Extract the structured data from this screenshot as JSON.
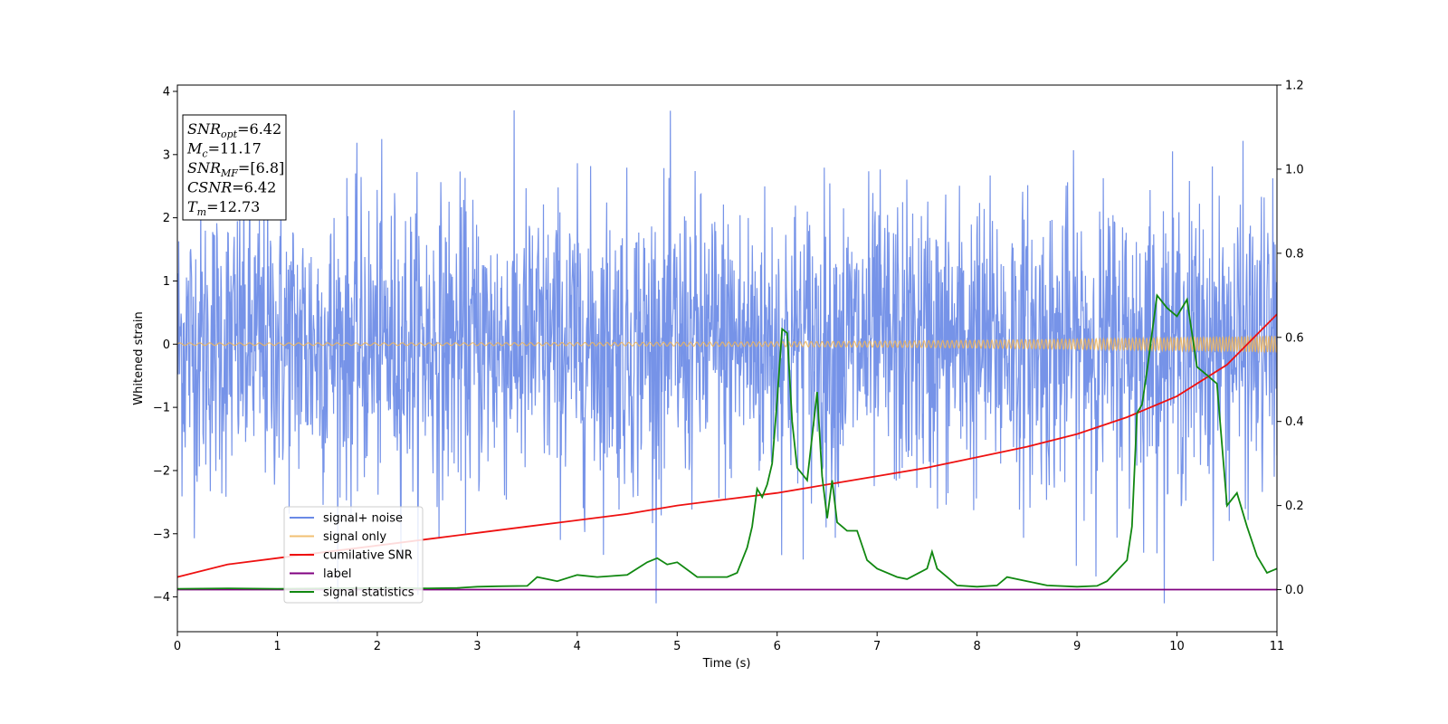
{
  "chart_data": {
    "type": "line",
    "title": "",
    "xlabel": "Time (s)",
    "ylabel": "Whitened strain",
    "xlim": [
      0,
      11
    ],
    "ylim_left": [
      -4.55,
      4.1
    ],
    "ylim_right": [
      -0.1,
      1.2
    ],
    "x_ticks": [
      "0",
      "1",
      "2",
      "3",
      "4",
      "5",
      "6",
      "7",
      "8",
      "9",
      "10",
      "11"
    ],
    "y_ticks_left": [
      "−4",
      "−3",
      "−2",
      "−1",
      "0",
      "1",
      "2",
      "3",
      "4"
    ],
    "y_ticks_right": [
      "0.0",
      "0.2",
      "0.4",
      "0.6",
      "0.8",
      "1.0",
      "1.2"
    ],
    "grid": false,
    "legend_position": "lower-left",
    "series": [
      {
        "name": "signal+ noise",
        "axis": "left",
        "color": "#6a8ae6",
        "kind": "noise",
        "typical_amplitude": 1.5,
        "max": 3.7,
        "min": -4.1
      },
      {
        "name": "signal only",
        "axis": "left",
        "color": "#f0b55a",
        "kind": "chirp",
        "amplitude_start": 0.02,
        "amplitude_end": 0.13
      },
      {
        "name": "cumilative SNR",
        "axis": "right",
        "color": "#ee1111",
        "x": [
          0,
          0.5,
          1,
          1.5,
          2,
          2.5,
          3,
          3.5,
          4,
          4.5,
          5,
          5.5,
          6,
          6.5,
          7,
          7.5,
          8,
          8.5,
          9,
          9.5,
          10,
          10.5,
          11
        ],
        "y": [
          0.03,
          0.06,
          0.075,
          0.09,
          0.105,
          0.12,
          0.135,
          0.15,
          0.165,
          0.18,
          0.2,
          0.215,
          0.23,
          0.25,
          0.27,
          0.29,
          0.315,
          0.34,
          0.37,
          0.41,
          0.46,
          0.535,
          0.655
        ]
      },
      {
        "name": "label",
        "axis": "right",
        "color": "#800080",
        "x": [
          0,
          11
        ],
        "y": [
          0,
          0
        ]
      },
      {
        "name": "signal statistics",
        "axis": "right",
        "color": "#118811",
        "x": [
          0,
          0.5,
          1,
          1.5,
          2,
          2.5,
          2.8,
          3,
          3.2,
          3.5,
          3.6,
          3.7,
          3.8,
          4,
          4.2,
          4.5,
          4.7,
          4.8,
          4.9,
          5,
          5.2,
          5.5,
          5.6,
          5.7,
          5.75,
          5.8,
          5.85,
          5.9,
          5.95,
          6.0,
          6.05,
          6.1,
          6.15,
          6.2,
          6.3,
          6.4,
          6.45,
          6.5,
          6.55,
          6.6,
          6.65,
          6.7,
          6.8,
          6.9,
          7.0,
          7.2,
          7.3,
          7.5,
          7.55,
          7.6,
          7.7,
          7.8,
          8.0,
          8.2,
          8.3,
          8.5,
          8.7,
          9.0,
          9.2,
          9.3,
          9.5,
          9.55,
          9.6,
          9.65,
          9.7,
          9.8,
          9.9,
          10.0,
          10.1,
          10.2,
          10.3,
          10.4,
          10.5,
          10.6,
          10.7,
          10.8,
          10.9,
          11.0
        ],
        "y": [
          0.002,
          0.003,
          0.002,
          0.003,
          0.004,
          0.003,
          0.004,
          0.007,
          0.008,
          0.009,
          0.03,
          0.025,
          0.02,
          0.035,
          0.03,
          0.035,
          0.065,
          0.075,
          0.06,
          0.065,
          0.03,
          0.03,
          0.04,
          0.1,
          0.15,
          0.24,
          0.22,
          0.25,
          0.3,
          0.45,
          0.62,
          0.61,
          0.4,
          0.29,
          0.26,
          0.47,
          0.27,
          0.17,
          0.26,
          0.16,
          0.15,
          0.14,
          0.14,
          0.07,
          0.05,
          0.03,
          0.025,
          0.05,
          0.09,
          0.05,
          0.03,
          0.01,
          0.007,
          0.01,
          0.03,
          0.02,
          0.01,
          0.007,
          0.009,
          0.02,
          0.07,
          0.15,
          0.42,
          0.44,
          0.52,
          0.7,
          0.67,
          0.65,
          0.69,
          0.53,
          0.51,
          0.49,
          0.2,
          0.23,
          0.15,
          0.08,
          0.04,
          0.05
        ]
      }
    ],
    "annotations": [
      {
        "main": "SNR",
        "sub": "opt",
        "value": "=6.42"
      },
      {
        "main": "M",
        "sub": "c",
        "value": "=11.17"
      },
      {
        "main": "SNR",
        "sub": "MF",
        "value": "=[6.8]"
      },
      {
        "main": "CSNR",
        "sub": "",
        "value": "=6.42"
      },
      {
        "main": "T",
        "sub": "m",
        "value": "=12.73"
      }
    ]
  }
}
